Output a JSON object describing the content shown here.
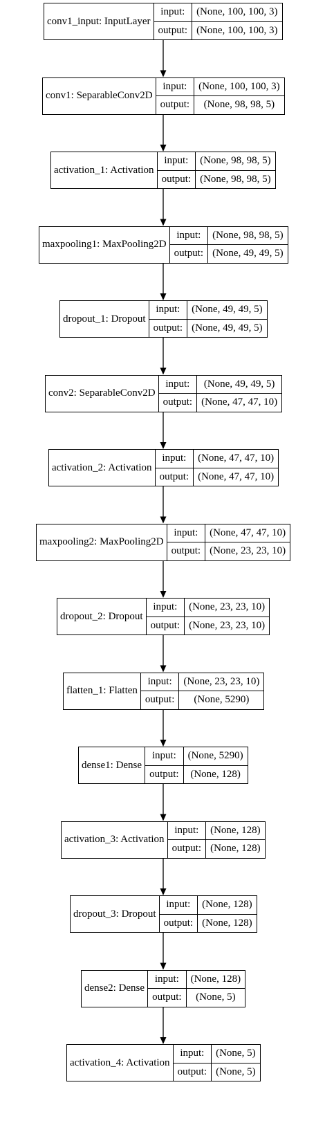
{
  "layers": [
    {
      "name": "conv1_input: InputLayer",
      "input": "(None, 100, 100, 3)",
      "output": "(None, 100, 100, 3)"
    },
    {
      "name": "conv1: SeparableConv2D",
      "input": "(None, 100, 100, 3)",
      "output": "(None, 98, 98, 5)"
    },
    {
      "name": "activation_1: Activation",
      "input": "(None, 98, 98, 5)",
      "output": "(None, 98, 98, 5)"
    },
    {
      "name": "maxpooling1: MaxPooling2D",
      "input": "(None, 98, 98, 5)",
      "output": "(None, 49, 49, 5)"
    },
    {
      "name": "dropout_1: Dropout",
      "input": "(None, 49, 49, 5)",
      "output": "(None, 49, 49, 5)"
    },
    {
      "name": "conv2: SeparableConv2D",
      "input": "(None, 49, 49, 5)",
      "output": "(None, 47, 47, 10)"
    },
    {
      "name": "activation_2: Activation",
      "input": "(None, 47, 47, 10)",
      "output": "(None, 47, 47, 10)"
    },
    {
      "name": "maxpooling2: MaxPooling2D",
      "input": "(None, 47, 47, 10)",
      "output": "(None, 23, 23, 10)"
    },
    {
      "name": "dropout_2: Dropout",
      "input": "(None, 23, 23, 10)",
      "output": "(None, 23, 23, 10)"
    },
    {
      "name": "flatten_1: Flatten",
      "input": "(None, 23, 23, 10)",
      "output": "(None, 5290)"
    },
    {
      "name": "dense1: Dense",
      "input": "(None, 5290)",
      "output": "(None, 128)"
    },
    {
      "name": "activation_3: Activation",
      "input": "(None, 128)",
      "output": "(None, 128)"
    },
    {
      "name": "dropout_3: Dropout",
      "input": "(None, 128)",
      "output": "(None, 128)"
    },
    {
      "name": "dense2: Dense",
      "input": "(None, 128)",
      "output": "(None, 5)"
    },
    {
      "name": "activation_4: Activation",
      "input": "(None, 5)",
      "output": "(None, 5)"
    }
  ],
  "port_labels": {
    "input": "input:",
    "output": "output:"
  }
}
